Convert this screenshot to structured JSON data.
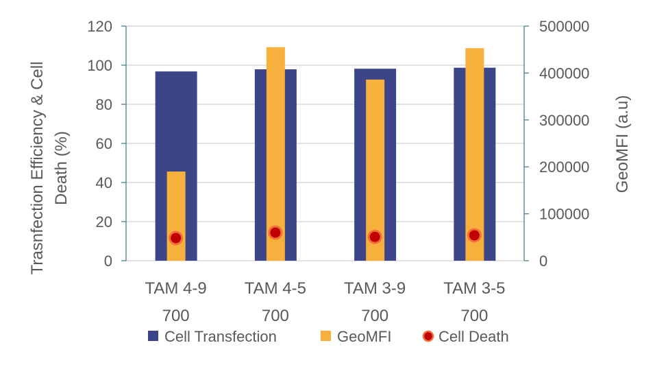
{
  "chart_data": {
    "type": "bar",
    "categories": [
      [
        "TAM 4-9",
        "700"
      ],
      [
        "TAM 4-5",
        "700"
      ],
      [
        "TAM 3-9",
        "700"
      ],
      [
        "TAM 3-5",
        "700"
      ]
    ],
    "series": [
      {
        "name": "Cell Transfection",
        "axis": "left",
        "kind": "bar",
        "values": [
          96.8,
          97.9,
          98.2,
          98.7
        ],
        "color": "#3B4587"
      },
      {
        "name": "GeoMFI",
        "axis": "right",
        "kind": "bar",
        "values": [
          190000,
          455000,
          386000,
          453000
        ],
        "color": "#F7B03C"
      },
      {
        "name": "Cell Death",
        "axis": "left",
        "kind": "scatter",
        "values": [
          11.6,
          14.4,
          12.2,
          13.0
        ],
        "color": "#C00000"
      }
    ],
    "ylabel": [
      "Trasnfection Efficiency & Cell",
      "Death (%)"
    ],
    "y2label": "GeoMFI (a.u)",
    "ylim": [
      0,
      120
    ],
    "yticks": [
      0,
      20,
      40,
      60,
      80,
      100,
      120
    ],
    "y2lim": [
      0,
      500000
    ],
    "y2ticks": [
      0,
      100000,
      200000,
      300000,
      400000,
      500000
    ],
    "grid": true,
    "legend": "bottom"
  }
}
